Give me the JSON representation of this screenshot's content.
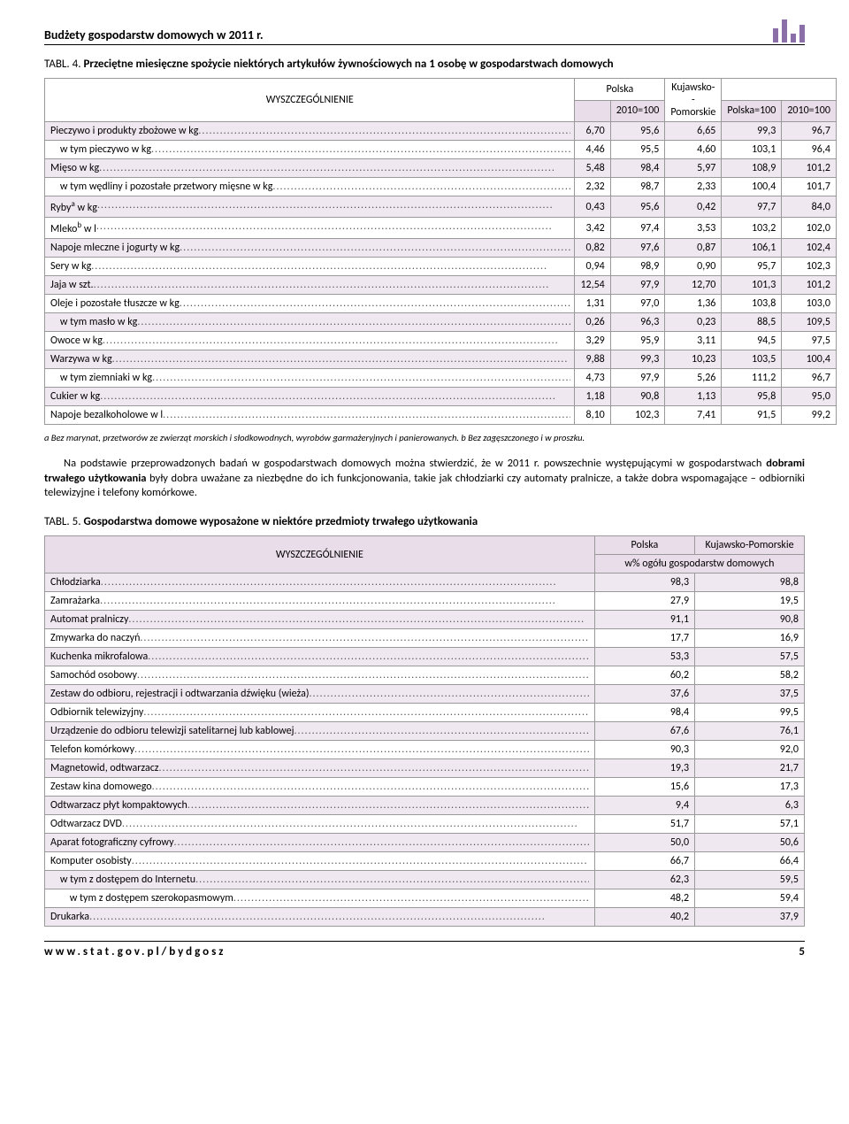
{
  "doc_title": "Budżety gospodarstw domowych w 2011 r.",
  "table4": {
    "caption_prefix": "TABL. 4.",
    "caption": "Przeciętne miesięczne spożycie niektórych artykułów żywnościowych na 1 osobę w gospodarstwach domowych",
    "head": {
      "col1": "WYSZCZEGÓLNIENIE",
      "polska": "Polska",
      "kp": "Kujawsko-\n-Pomorskie",
      "y2010a": "2010=100",
      "polska100": "Polska=100",
      "y2010b": "2010=100"
    },
    "rows": [
      {
        "label": "Pieczywo i produkty zbożowe w kg",
        "v": [
          "6,70",
          "95,6",
          "6,65",
          "99,3",
          "96,7"
        ],
        "shade": true,
        "indent": 0
      },
      {
        "label": "w tym pieczywo w kg",
        "v": [
          "4,46",
          "95,5",
          "4,60",
          "103,1",
          "96,4"
        ],
        "shade": false,
        "indent": 1
      },
      {
        "label": "Mięso w kg",
        "v": [
          "5,48",
          "98,4",
          "5,97",
          "108,9",
          "101,2"
        ],
        "shade": true,
        "indent": 0
      },
      {
        "label": "w tym wędliny i pozostałe przetwory mięsne w kg",
        "v": [
          "2,32",
          "98,7",
          "2,33",
          "100,4",
          "101,7"
        ],
        "shade": false,
        "indent": 1
      },
      {
        "label": "Ryby<sup>a</sup> w kg",
        "v": [
          "0,43",
          "95,6",
          "0,42",
          "97,7",
          "84,0"
        ],
        "shade": true,
        "indent": 0,
        "html": true
      },
      {
        "label": "Mleko<sup>b</sup> w l",
        "v": [
          "3,42",
          "97,4",
          "3,53",
          "103,2",
          "102,0"
        ],
        "shade": false,
        "indent": 0,
        "html": true
      },
      {
        "label": "Napoje mleczne i jogurty w kg",
        "v": [
          "0,82",
          "97,6",
          "0,87",
          "106,1",
          "102,4"
        ],
        "shade": true,
        "indent": 0
      },
      {
        "label": "Sery w kg",
        "v": [
          "0,94",
          "98,9",
          "0,90",
          "95,7",
          "102,3"
        ],
        "shade": false,
        "indent": 0
      },
      {
        "label": "Jaja w szt.",
        "v": [
          "12,54",
          "97,9",
          "12,70",
          "101,3",
          "101,2"
        ],
        "shade": true,
        "indent": 0
      },
      {
        "label": "Oleje i pozostałe tłuszcze w kg",
        "v": [
          "1,31",
          "97,0",
          "1,36",
          "103,8",
          "103,0"
        ],
        "shade": false,
        "indent": 0
      },
      {
        "label": "w tym masło w kg",
        "v": [
          "0,26",
          "96,3",
          "0,23",
          "88,5",
          "109,5"
        ],
        "shade": true,
        "indent": 1
      },
      {
        "label": "Owoce w kg",
        "v": [
          "3,29",
          "95,9",
          "3,11",
          "94,5",
          "97,5"
        ],
        "shade": false,
        "indent": 0
      },
      {
        "label": "Warzywa w kg",
        "v": [
          "9,88",
          "99,3",
          "10,23",
          "103,5",
          "100,4"
        ],
        "shade": true,
        "indent": 0
      },
      {
        "label": "w tym ziemniaki w kg",
        "v": [
          "4,73",
          "97,9",
          "5,26",
          "111,2",
          "96,7"
        ],
        "shade": false,
        "indent": 1
      },
      {
        "label": "Cukier w kg",
        "v": [
          "1,18",
          "90,8",
          "1,13",
          "95,8",
          "95,0"
        ],
        "shade": true,
        "indent": 0
      },
      {
        "label": "Napoje bezalkoholowe w l",
        "v": [
          "8,10",
          "102,3",
          "7,41",
          "91,5",
          "99,2"
        ],
        "shade": false,
        "indent": 0
      }
    ],
    "footnote": "a Bez marynat, przetworów ze zwierząt morskich i słodkowodnych, wyrobów garmażeryjnych i panierowanych. b Bez zagęszczonego i w proszku."
  },
  "paragraph": "Na podstawie przeprowadzonych badań w gospodarstwach domowych można stwierdzić, że w 2011 r. powszechnie występującymi w gospodarstwach dobrami trwałego użytkowania były dobra uważane za niezbędne do ich funkcjonowania, takie jak chłodziarki czy automaty pralnicze, a także dobra wspomagające – odbiorniki telewizyjne i telefony komórkowe.",
  "paragraph_bold": "dobrami trwałego użytkowania",
  "table5": {
    "caption_prefix": "TABL. 5.",
    "caption": "Gospodarstwa domowe wyposażone w niektóre przedmioty trwałego użytkowania",
    "head": {
      "col1": "WYSZCZEGÓLNIENIE",
      "polska": "Polska",
      "kp": "Kujawsko-Pomorskie",
      "sub": "w% ogółu gospodarstw domowych"
    },
    "rows": [
      {
        "label": "Chłodziarka",
        "v": [
          "98,3",
          "98,8"
        ],
        "shade": true,
        "indent": 0
      },
      {
        "label": "Zamrażarka",
        "v": [
          "27,9",
          "19,5"
        ],
        "shade": false,
        "indent": 0
      },
      {
        "label": "Automat pralniczy",
        "v": [
          "91,1",
          "90,8"
        ],
        "shade": true,
        "indent": 0
      },
      {
        "label": "Zmywarka do naczyń",
        "v": [
          "17,7",
          "16,9"
        ],
        "shade": false,
        "indent": 0
      },
      {
        "label": "Kuchenka mikrofalowa",
        "v": [
          "53,3",
          "57,5"
        ],
        "shade": true,
        "indent": 0
      },
      {
        "label": "Samochód osobowy",
        "v": [
          "60,2",
          "58,2"
        ],
        "shade": false,
        "indent": 0
      },
      {
        "label": "Zestaw do odbioru, rejestracji i odtwarzania dźwięku (wieża)",
        "v": [
          "37,6",
          "37,5"
        ],
        "shade": true,
        "indent": 0
      },
      {
        "label": "Odbiornik telewizyjny",
        "v": [
          "98,4",
          "99,5"
        ],
        "shade": false,
        "indent": 0
      },
      {
        "label": "Urządzenie do odbioru telewizji satelitarnej lub kablowej",
        "v": [
          "67,6",
          "76,1"
        ],
        "shade": true,
        "indent": 0
      },
      {
        "label": "Telefon komórkowy",
        "v": [
          "90,3",
          "92,0"
        ],
        "shade": false,
        "indent": 0
      },
      {
        "label": "Magnetowid, odtwarzacz",
        "v": [
          "19,3",
          "21,7"
        ],
        "shade": true,
        "indent": 0
      },
      {
        "label": "Zestaw kina domowego",
        "v": [
          "15,6",
          "17,3"
        ],
        "shade": false,
        "indent": 0
      },
      {
        "label": "Odtwarzacz płyt kompaktowych",
        "v": [
          "9,4",
          "6,3"
        ],
        "shade": true,
        "indent": 0
      },
      {
        "label": "Odtwarzacz DVD",
        "v": [
          "51,7",
          "57,1"
        ],
        "shade": false,
        "indent": 0
      },
      {
        "label": "Aparat fotograficzny cyfrowy",
        "v": [
          "50,0",
          "50,6"
        ],
        "shade": true,
        "indent": 0
      },
      {
        "label": "Komputer osobisty",
        "v": [
          "66,7",
          "66,4"
        ],
        "shade": false,
        "indent": 0
      },
      {
        "label": "w tym z dostępem do Internetu",
        "v": [
          "62,3",
          "59,5"
        ],
        "shade": true,
        "indent": 1
      },
      {
        "label": "w tym z dostępem szerokopasmowym",
        "v": [
          "48,2",
          "59,4"
        ],
        "shade": false,
        "indent": 2
      },
      {
        "label": "Drukarka",
        "v": [
          "40,2",
          "37,9"
        ],
        "shade": true,
        "indent": 0
      }
    ]
  },
  "footer": {
    "url": "www.stat.gov.pl/bydgosz",
    "page": "5"
  },
  "colors": {
    "shade": "#f0e8f0",
    "head": "#eaddea",
    "accent": "#8b6fa8",
    "border": "#999999"
  }
}
